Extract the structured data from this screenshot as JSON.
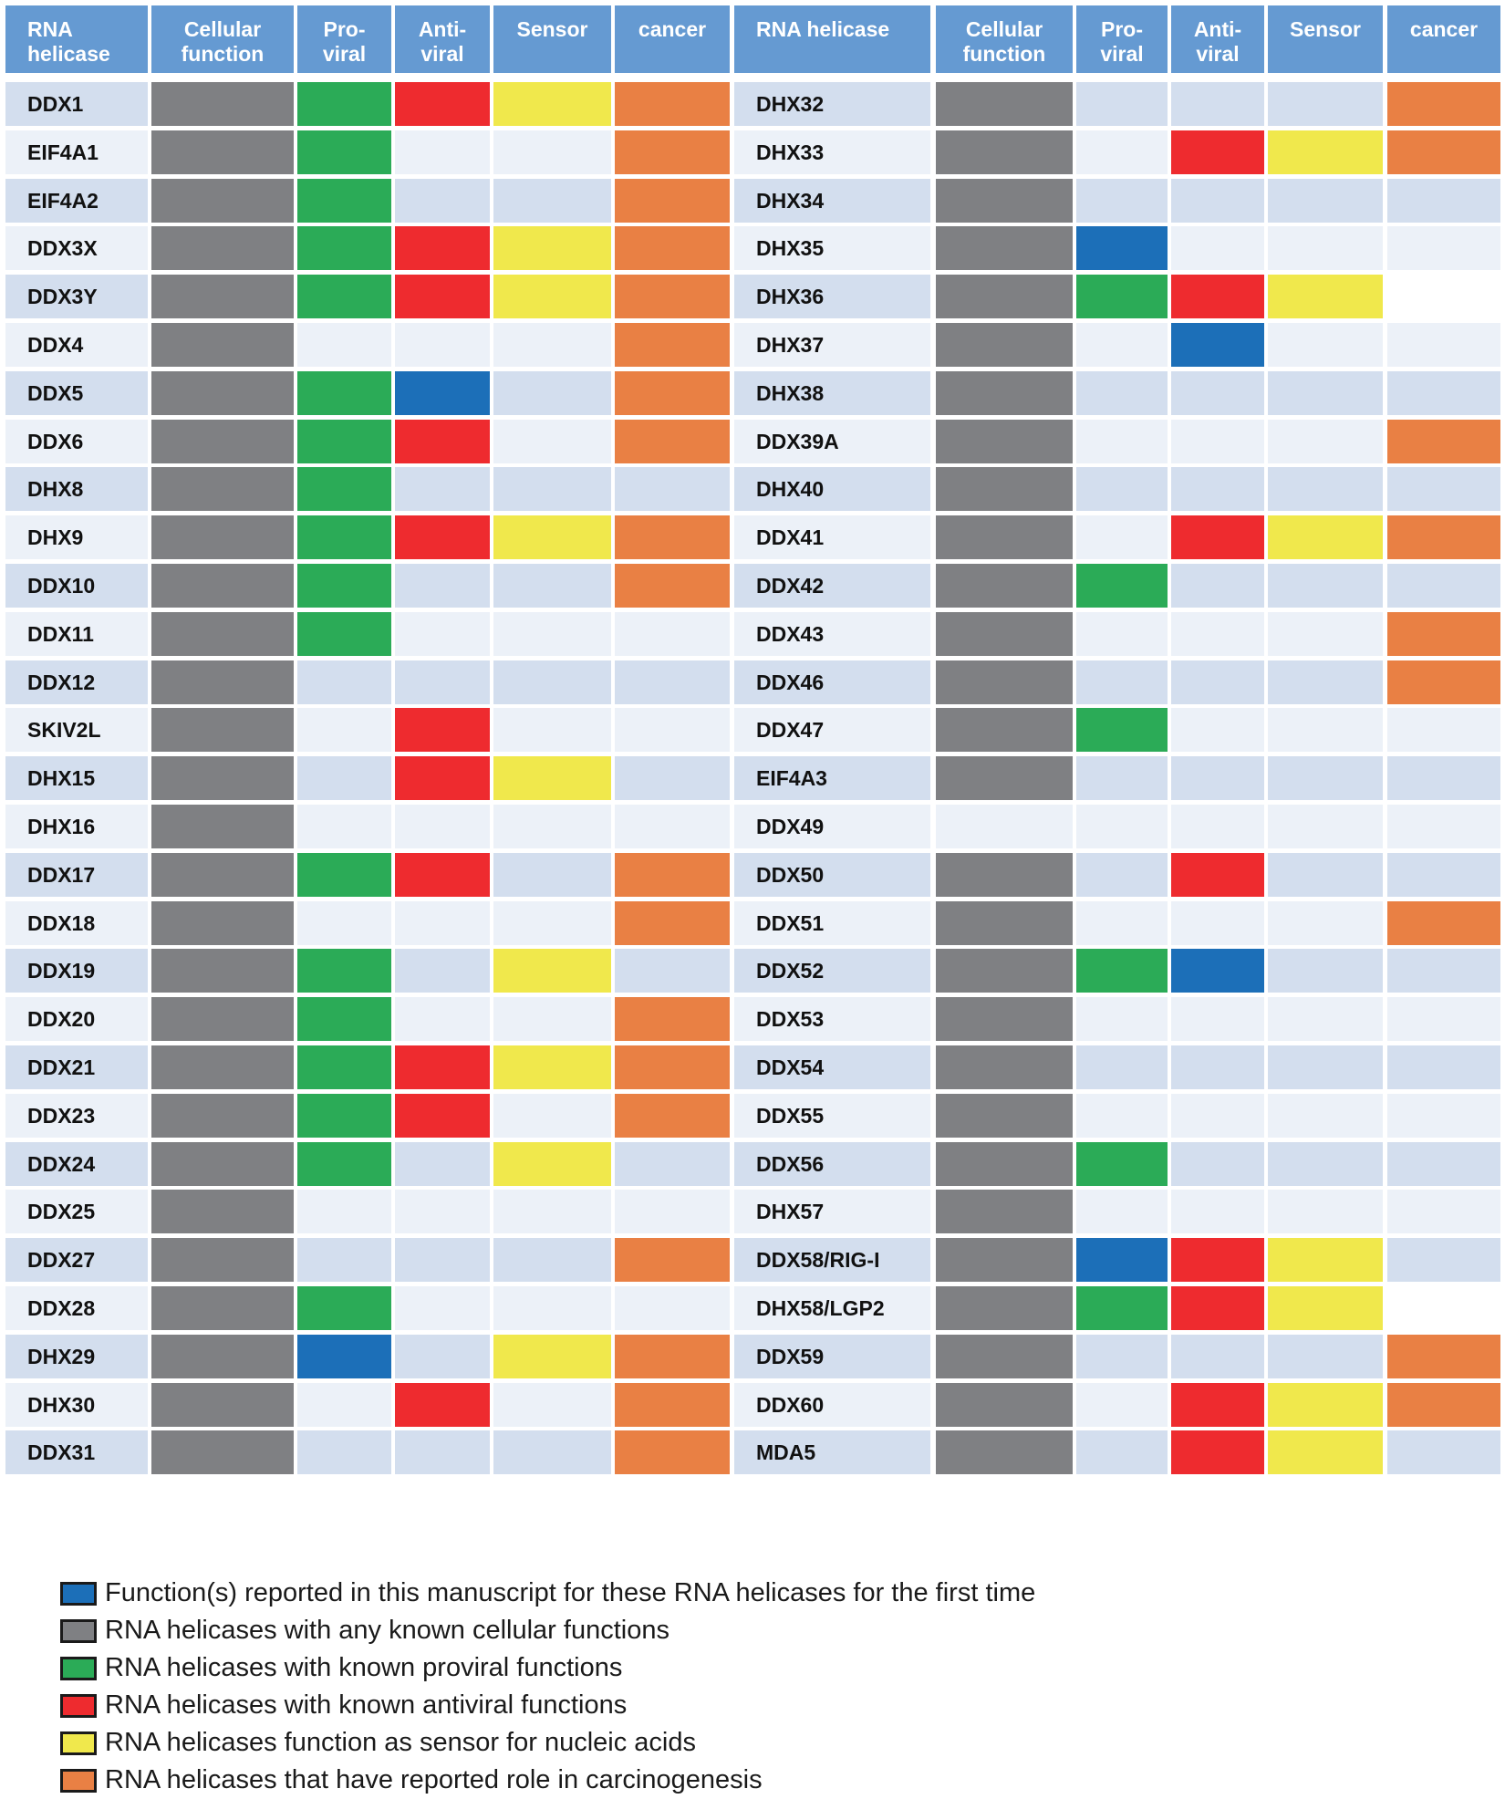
{
  "chart_data": {
    "type": "table",
    "title": "",
    "columns": [
      "RNA\nhelicase",
      "Cellular\nfunction",
      "Pro-\nviral",
      "Anti-\nviral",
      "Sensor",
      "cancer",
      "RNA helicase",
      "Cellular\nfunction",
      "Pro-\nviral",
      "Anti-\nviral",
      "Sensor",
      "cancer"
    ],
    "color_key": {
      "B": "#1c6fb8",
      "G": "#7f8083",
      "P": "#2bab57",
      "R": "#ee2b2f",
      "Y": "#f0e84c",
      "O": "#e98044",
      "W": "#ffffff"
    },
    "background_colors": [
      "#d3deee",
      "#ecf1f8"
    ],
    "left_table": [
      {
        "helicase": "DDX1",
        "cells": [
          "G",
          "P",
          "R",
          "Y",
          "O"
        ]
      },
      {
        "helicase": "EIF4A1",
        "cells": [
          "G",
          "P",
          "",
          "",
          "O"
        ]
      },
      {
        "helicase": "EIF4A2",
        "cells": [
          "G",
          "P",
          "",
          "",
          "O"
        ]
      },
      {
        "helicase": "DDX3X",
        "cells": [
          "G",
          "P",
          "R",
          "Y",
          "O"
        ]
      },
      {
        "helicase": "DDX3Y",
        "cells": [
          "G",
          "P",
          "R",
          "Y",
          "O"
        ]
      },
      {
        "helicase": "DDX4",
        "cells": [
          "G",
          "",
          "",
          "",
          "O"
        ]
      },
      {
        "helicase": "DDX5",
        "cells": [
          "G",
          "P",
          "B",
          "",
          "O"
        ]
      },
      {
        "helicase": "DDX6",
        "cells": [
          "G",
          "P",
          "R",
          "",
          "O"
        ]
      },
      {
        "helicase": "DHX8",
        "cells": [
          "G",
          "P",
          "",
          "",
          ""
        ]
      },
      {
        "helicase": "DHX9",
        "cells": [
          "G",
          "P",
          "R",
          "Y",
          "O"
        ]
      },
      {
        "helicase": "DDX10",
        "cells": [
          "G",
          "P",
          "",
          "",
          "O"
        ]
      },
      {
        "helicase": "DDX11",
        "cells": [
          "G",
          "P",
          "",
          "",
          ""
        ]
      },
      {
        "helicase": "DDX12",
        "cells": [
          "G",
          "",
          "",
          "",
          ""
        ]
      },
      {
        "helicase": "SKIV2L",
        "cells": [
          "G",
          "",
          "R",
          "",
          ""
        ]
      },
      {
        "helicase": "DHX15",
        "cells": [
          "G",
          "",
          "R",
          "Y",
          ""
        ]
      },
      {
        "helicase": "DHX16",
        "cells": [
          "G",
          "",
          "",
          "",
          ""
        ]
      },
      {
        "helicase": "DDX17",
        "cells": [
          "G",
          "P",
          "R",
          "",
          "O"
        ]
      },
      {
        "helicase": "DDX18",
        "cells": [
          "G",
          "",
          "",
          "",
          "O"
        ]
      },
      {
        "helicase": "DDX19",
        "cells": [
          "G",
          "P",
          "",
          "Y",
          ""
        ]
      },
      {
        "helicase": "DDX20",
        "cells": [
          "G",
          "P",
          "",
          "",
          "O"
        ]
      },
      {
        "helicase": "DDX21",
        "cells": [
          "G",
          "P",
          "R",
          "Y",
          "O"
        ]
      },
      {
        "helicase": "DDX23",
        "cells": [
          "G",
          "P",
          "R",
          "",
          "O"
        ]
      },
      {
        "helicase": "DDX24",
        "cells": [
          "G",
          "P",
          "",
          "Y",
          ""
        ]
      },
      {
        "helicase": "DDX25",
        "cells": [
          "G",
          "",
          "",
          "",
          ""
        ]
      },
      {
        "helicase": "DDX27",
        "cells": [
          "G",
          "",
          "",
          "",
          "O"
        ]
      },
      {
        "helicase": "DDX28",
        "cells": [
          "G",
          "P",
          "",
          "",
          ""
        ]
      },
      {
        "helicase": "DHX29",
        "cells": [
          "G",
          "B",
          "",
          "Y",
          "O"
        ]
      },
      {
        "helicase": "DHX30",
        "cells": [
          "G",
          "",
          "R",
          "",
          "O"
        ]
      },
      {
        "helicase": "DDX31",
        "cells": [
          "G",
          "",
          "",
          "",
          "O"
        ]
      }
    ],
    "right_table": [
      {
        "helicase": "DHX32",
        "cells": [
          "G",
          "",
          "",
          "",
          "O"
        ]
      },
      {
        "helicase": "DHX33",
        "cells": [
          "G",
          "",
          "R",
          "Y",
          "O"
        ]
      },
      {
        "helicase": "DHX34",
        "cells": [
          "G",
          "",
          "",
          "",
          ""
        ]
      },
      {
        "helicase": "DHX35",
        "cells": [
          "G",
          "B",
          "",
          "",
          ""
        ]
      },
      {
        "helicase": "DHX36",
        "cells": [
          "G",
          "P",
          "R",
          "Y",
          "W"
        ]
      },
      {
        "helicase": "DHX37",
        "cells": [
          "G",
          "",
          "B",
          "",
          ""
        ]
      },
      {
        "helicase": "DHX38",
        "cells": [
          "G",
          "",
          "",
          "",
          ""
        ]
      },
      {
        "helicase": "DDX39A",
        "cells": [
          "G",
          "",
          "",
          "",
          "O"
        ]
      },
      {
        "helicase": "DHX40",
        "cells": [
          "G",
          "",
          "",
          "",
          ""
        ]
      },
      {
        "helicase": "DDX41",
        "cells": [
          "G",
          "",
          "R",
          "Y",
          "O"
        ]
      },
      {
        "helicase": "DDX42",
        "cells": [
          "G",
          "P",
          "",
          "",
          ""
        ]
      },
      {
        "helicase": "DDX43",
        "cells": [
          "G",
          "",
          "",
          "",
          "O"
        ]
      },
      {
        "helicase": "DDX46",
        "cells": [
          "G",
          "",
          "",
          "",
          "O"
        ]
      },
      {
        "helicase": "DDX47",
        "cells": [
          "G",
          "P",
          "",
          "",
          ""
        ]
      },
      {
        "helicase": "EIF4A3",
        "cells": [
          "G",
          "",
          "",
          "",
          ""
        ]
      },
      {
        "helicase": "DDX49",
        "cells": [
          "",
          "",
          "",
          "",
          ""
        ]
      },
      {
        "helicase": "DDX50",
        "cells": [
          "G",
          "",
          "R",
          "",
          ""
        ]
      },
      {
        "helicase": "DDX51",
        "cells": [
          "G",
          "",
          "",
          "",
          "O"
        ]
      },
      {
        "helicase": "DDX52",
        "cells": [
          "G",
          "P",
          "B",
          "",
          ""
        ]
      },
      {
        "helicase": "DDX53",
        "cells": [
          "G",
          "",
          "",
          "",
          ""
        ]
      },
      {
        "helicase": "DDX54",
        "cells": [
          "G",
          "",
          "",
          "",
          ""
        ]
      },
      {
        "helicase": "DDX55",
        "cells": [
          "G",
          "",
          "",
          "",
          ""
        ]
      },
      {
        "helicase": "DDX56",
        "cells": [
          "G",
          "P",
          "",
          "",
          ""
        ]
      },
      {
        "helicase": "DHX57",
        "cells": [
          "G",
          "",
          "",
          "",
          ""
        ]
      },
      {
        "helicase": "DDX58/RIG-I",
        "cells": [
          "G",
          "B",
          "R",
          "Y",
          ""
        ]
      },
      {
        "helicase": "DHX58/LGP2",
        "cells": [
          "G",
          "P",
          "R",
          "Y",
          "W"
        ]
      },
      {
        "helicase": "DDX59",
        "cells": [
          "G",
          "",
          "",
          "",
          "O"
        ]
      },
      {
        "helicase": "DDX60",
        "cells": [
          "G",
          "",
          "R",
          "Y",
          "O"
        ]
      },
      {
        "helicase": "MDA5",
        "cells": [
          "G",
          "",
          "R",
          "Y",
          ""
        ]
      }
    ],
    "legend": [
      {
        "color": "#1c6fb8",
        "label": "Function(s) reported in this manuscript for these RNA helicases for the first time"
      },
      {
        "color": "#7f8083",
        "label": "RNA helicases with any known cellular functions"
      },
      {
        "color": "#2bab57",
        "label": "RNA helicases with known proviral functions"
      },
      {
        "color": "#ee2b2f",
        "label": "RNA helicases with known antiviral functions"
      },
      {
        "color": "#f0e84c",
        "label": "RNA helicases function as sensor for nucleic acids"
      },
      {
        "color": "#e98044",
        "label": "RNA helicases that have reported role in carcinogenesis"
      }
    ]
  }
}
